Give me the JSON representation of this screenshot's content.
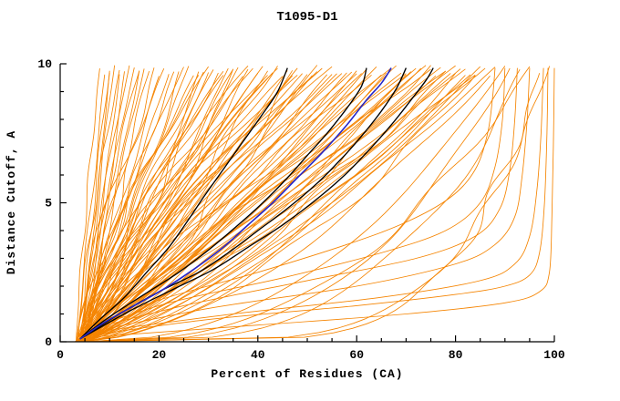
{
  "chart_data": {
    "type": "line",
    "title": "T1095-D1",
    "xlabel": "Percent of Residues (CA)",
    "ylabel": "Distance Cutoff, A",
    "xlim": [
      0,
      100
    ],
    "ylim": [
      0,
      10
    ],
    "x_ticks": [
      0,
      20,
      40,
      60,
      80,
      100
    ],
    "y_ticks": [
      0,
      5,
      10
    ],
    "x_minor_step": 5,
    "y_minor_step": 1,
    "grid": false,
    "legend": null,
    "curve_model": {
      "x_start_min": 3,
      "x_start_max": 6,
      "y_top_min": 9.55,
      "y_top_max": 9.95
    },
    "series_groups": [
      {
        "name": "prediction-orange",
        "color": "#f58400",
        "width": 0.85,
        "param_curves": [
          [
            8,
            1.2
          ],
          [
            9,
            1.0
          ],
          [
            10,
            1.4
          ],
          [
            10,
            0.9
          ],
          [
            11,
            1.1
          ],
          [
            12,
            1.3
          ],
          [
            12,
            0.8
          ],
          [
            13,
            1.0
          ],
          [
            14,
            1.5
          ],
          [
            15,
            1.1
          ],
          [
            16,
            0.9
          ],
          [
            16,
            1.3
          ],
          [
            17,
            1.0
          ],
          [
            18,
            1.2
          ],
          [
            19,
            0.9
          ],
          [
            20,
            1.1
          ],
          [
            21,
            1.4
          ],
          [
            22,
            1.0
          ],
          [
            23,
            1.1
          ],
          [
            24,
            0.9
          ],
          [
            25,
            1.3
          ],
          [
            26,
            1.0
          ],
          [
            27,
            1.2
          ],
          [
            28,
            0.8
          ],
          [
            29,
            1.1
          ],
          [
            30,
            1.4
          ],
          [
            30,
            0.9
          ],
          [
            31,
            1.2
          ],
          [
            32,
            1.0
          ],
          [
            33,
            1.3
          ],
          [
            34,
            0.8
          ],
          [
            35,
            1.1
          ],
          [
            36,
            1.0
          ],
          [
            37,
            1.2
          ],
          [
            38,
            0.9
          ],
          [
            39,
            1.3
          ],
          [
            40,
            1.0
          ],
          [
            41,
            1.1
          ],
          [
            42,
            0.85
          ],
          [
            43,
            1.2
          ],
          [
            44,
            1.0
          ],
          [
            45,
            1.3
          ],
          [
            46,
            0.9
          ],
          [
            47,
            1.1
          ],
          [
            48,
            1.0
          ],
          [
            49,
            1.2
          ],
          [
            50,
            0.85
          ],
          [
            51,
            1.1
          ],
          [
            52,
            1.0
          ],
          [
            53,
            1.25
          ],
          [
            54,
            0.9
          ],
          [
            55,
            1.1
          ],
          [
            56,
            1.0
          ],
          [
            57,
            1.2
          ],
          [
            58,
            0.9
          ],
          [
            59,
            1.05
          ],
          [
            60,
            1.15
          ],
          [
            60,
            0.8
          ],
          [
            44,
            1.4
          ],
          [
            38,
            1.5
          ],
          [
            33,
            1.5
          ],
          [
            48,
            1.4
          ],
          [
            52,
            1.35
          ],
          [
            28,
            1.35
          ],
          [
            35,
            0.7
          ],
          [
            42,
            1.5
          ],
          [
            47,
            0.75
          ],
          [
            55,
            1.35
          ],
          [
            61,
            1.0
          ],
          [
            62,
            0.85
          ],
          [
            63,
            1.1
          ],
          [
            64,
            0.9
          ],
          [
            65,
            1.0
          ],
          [
            66,
            0.8
          ],
          [
            67,
            1.05
          ],
          [
            68,
            0.9
          ],
          [
            69,
            1.0
          ],
          [
            70,
            0.75
          ],
          [
            70,
            1.1
          ],
          [
            71,
            0.9
          ],
          [
            72,
            1.0
          ],
          [
            73,
            0.8
          ],
          [
            74,
            0.95
          ],
          [
            75,
            0.7
          ],
          [
            75,
            1.05
          ],
          [
            76,
            0.85
          ],
          [
            77,
            0.95
          ],
          [
            78,
            0.7
          ],
          [
            78,
            1.0
          ],
          [
            79,
            0.85
          ],
          [
            80,
            0.6
          ],
          [
            80,
            0.95
          ],
          [
            81,
            0.8
          ],
          [
            82,
            0.65
          ],
          [
            82,
            0.9
          ],
          [
            83,
            0.75
          ],
          [
            84,
            0.6
          ],
          [
            84,
            0.9
          ],
          [
            85,
            0.7
          ],
          [
            86,
            0.8
          ],
          [
            87,
            0.6
          ],
          [
            88,
            0.7
          ],
          [
            90,
            0.45
          ],
          [
            91,
            0.35
          ],
          [
            93,
            0.3
          ],
          [
            95,
            0.4
          ],
          [
            97,
            0.18
          ],
          [
            99,
            0.2
          ]
        ],
        "point_curves": [
          [
            [
              5,
              0.15
            ],
            [
              40,
              0.6
            ],
            [
              70,
              1.0
            ],
            [
              90,
              1.4
            ],
            [
              97,
              1.8
            ],
            [
              99,
              2.5
            ],
            [
              99.5,
              4.5
            ],
            [
              99.8,
              7.0
            ],
            [
              100,
              9.85
            ]
          ],
          [
            [
              5,
              0.2
            ],
            [
              30,
              0.8
            ],
            [
              60,
              1.3
            ],
            [
              80,
              1.7
            ],
            [
              90,
              2.0
            ],
            [
              95,
              2.4
            ],
            [
              97,
              3.2
            ],
            [
              98,
              5.0
            ],
            [
              98.5,
              7.5
            ],
            [
              98.7,
              9.85
            ]
          ],
          [
            [
              5,
              0.3
            ],
            [
              35,
              1.0
            ],
            [
              65,
              1.6
            ],
            [
              85,
              2.2
            ],
            [
              92,
              2.8
            ],
            [
              95,
              3.8
            ],
            [
              96.5,
              5.5
            ],
            [
              97.3,
              7.5
            ],
            [
              97.8,
              9.85
            ]
          ],
          [
            [
              5,
              0.3
            ],
            [
              30,
              1.2
            ],
            [
              60,
              2.0
            ],
            [
              80,
              2.8
            ],
            [
              88,
              3.5
            ],
            [
              92,
              4.5
            ],
            [
              93.5,
              6.0
            ],
            [
              94.5,
              8.0
            ],
            [
              95,
              9.85
            ]
          ],
          [
            [
              5,
              0.4
            ],
            [
              25,
              1.3
            ],
            [
              50,
              2.2
            ],
            [
              72,
              3.0
            ],
            [
              84,
              3.8
            ],
            [
              89,
              4.8
            ],
            [
              91,
              6.2
            ],
            [
              92,
              8.0
            ],
            [
              92.5,
              9.85
            ]
          ],
          [
            [
              5,
              0.4
            ],
            [
              22,
              1.4
            ],
            [
              45,
              2.3
            ],
            [
              65,
              3.2
            ],
            [
              78,
              4.0
            ],
            [
              85,
              5.0
            ],
            [
              88,
              6.3
            ],
            [
              89.5,
              8.0
            ],
            [
              90,
              9.85
            ]
          ],
          [
            [
              5,
              0.5
            ],
            [
              20,
              1.5
            ],
            [
              40,
              2.5
            ],
            [
              58,
              3.5
            ],
            [
              70,
              4.3
            ],
            [
              79,
              5.2
            ],
            [
              84,
              6.2
            ],
            [
              86.5,
              7.5
            ],
            [
              87.5,
              8.8
            ],
            [
              88,
              9.85
            ]
          ]
        ]
      },
      {
        "name": "highlight-black",
        "color": "#000000",
        "width": 1.35,
        "point_curves": [
          [
            [
              4,
              0.1
            ],
            [
              8,
              0.8
            ],
            [
              13,
              1.6
            ],
            [
              18,
              2.6
            ],
            [
              22,
              3.4
            ],
            [
              26,
              4.4
            ],
            [
              29,
              5.2
            ],
            [
              33,
              6.2
            ],
            [
              37,
              7.2
            ],
            [
              41,
              8.2
            ],
            [
              44,
              9.0
            ],
            [
              46,
              9.85
            ]
          ],
          [
            [
              4,
              0.1
            ],
            [
              10,
              0.9
            ],
            [
              17,
              1.7
            ],
            [
              24,
              2.5
            ],
            [
              30,
              3.3
            ],
            [
              36,
              4.2
            ],
            [
              41,
              5.0
            ],
            [
              46,
              5.9
            ],
            [
              50,
              6.7
            ],
            [
              54,
              7.5
            ],
            [
              58,
              8.4
            ],
            [
              61,
              9.2
            ],
            [
              62,
              9.85
            ]
          ],
          [
            [
              4,
              0.1
            ],
            [
              12,
              1.0
            ],
            [
              20,
              1.8
            ],
            [
              28,
              2.5
            ],
            [
              34,
              3.2
            ],
            [
              40,
              4.0
            ],
            [
              46,
              4.8
            ],
            [
              52,
              5.7
            ],
            [
              57,
              6.6
            ],
            [
              61,
              7.4
            ],
            [
              65,
              8.3
            ],
            [
              68,
              9.1
            ],
            [
              70,
              9.85
            ]
          ],
          [
            [
              4,
              0.1
            ],
            [
              14,
              1.1
            ],
            [
              23,
              1.9
            ],
            [
              31,
              2.6
            ],
            [
              38,
              3.4
            ],
            [
              45,
              4.2
            ],
            [
              51,
              5.0
            ],
            [
              57,
              5.9
            ],
            [
              62,
              6.8
            ],
            [
              67,
              7.8
            ],
            [
              71,
              8.7
            ],
            [
              74,
              9.4
            ],
            [
              75.5,
              9.85
            ]
          ]
        ]
      },
      {
        "name": "reference-blue",
        "color": "#2626c8",
        "width": 1.6,
        "point_curves": [
          [
            [
              4,
              0.1
            ],
            [
              9,
              0.7
            ],
            [
              15,
              1.3
            ],
            [
              21,
              1.9
            ],
            [
              27,
              2.6
            ],
            [
              33,
              3.4
            ],
            [
              38,
              4.2
            ],
            [
              43,
              5.0
            ],
            [
              48,
              5.9
            ],
            [
              53,
              6.8
            ],
            [
              58,
              7.8
            ],
            [
              62,
              8.7
            ],
            [
              65,
              9.3
            ],
            [
              67,
              9.85
            ]
          ]
        ]
      }
    ]
  }
}
